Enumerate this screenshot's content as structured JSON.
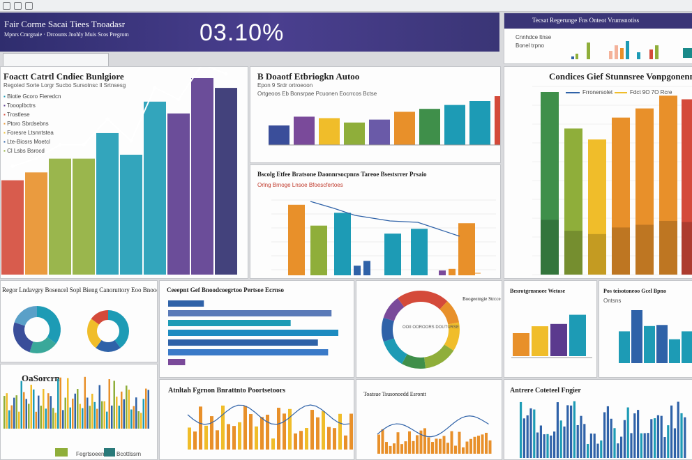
{
  "window": {
    "title_bar": ""
  },
  "banner": {
    "title": "Fair Corme Sacai Tiees Tnoadasr",
    "subtitle": "Mpnrs Cmrgnaie · Drcounts Jnohly Muis Scos Pregrom",
    "big_value": "03.10%"
  },
  "top_right": {
    "title": "Tecsat Regerunge Fns Onteot Vrumsnotiss",
    "items": [
      "Cnnhdce ltnse",
      "Bonel trpno"
    ]
  },
  "colors": {
    "purple": "#5b3a8e",
    "teal": "#1d9bb5",
    "olive": "#8fae3a",
    "orange": "#e8902a",
    "red": "#d44a3a",
    "blue": "#2f62a8",
    "yellow": "#f0bd2a",
    "green": "#3f8f4a"
  },
  "panels": {
    "p1": {
      "title": "Foactt Catrtl Cndiec Bunlgiore",
      "subtitle": "Regoted Sorte Lorgr Sucbo Sursotnsc Il Srtnsesg",
      "legend": [
        "Biotie Gcoro Fieredcn",
        "Toooplbctrs",
        "Trostlese",
        "Ptoro Sbrdsebns",
        "Foresre Ltsnntstea",
        "Lte-Biosrs Moetcl",
        "Cl Lsbs Bsrocd"
      ]
    },
    "p2": {
      "title": "B Doaotf Etbriogkn Autoo",
      "subtitle": "Epon 9 Srdr ortroeoon",
      "legend": "Ortgeoos Eb Bonsrpae Pcuonen Eocrrcos Bctse"
    },
    "p3": {
      "title": "Bscolg Etfee Bratsone Daonnrsocpnns Tareoe Bsestsrrer Prsaio",
      "subtitle": "Orlng Brnoge Lnsoe Bfoescfertoes"
    },
    "p4": {
      "title": "Condices Gief Stunnsree Vonpgonennone",
      "legend": [
        "Frronersolet",
        "Fdct 9O 7O Rcre"
      ]
    },
    "p5": {
      "title": "Regor Lndavgry Bosencel Sopl Bieng Canoruttory Eoo Bnooe"
    },
    "p6": {
      "title": "Ceeepnt Gef Bnoodcoegrtoo Pertsoe Ecrnso"
    },
    "p7": {
      "title": "Boogeemgie Strcce",
      "center": "OOII OOROORS DOUTURSE"
    },
    "p8": {
      "title": "Besrotgrnsnoee Wetose"
    },
    "p9": {
      "title": "Pos teisotoneoo Gcel Bpno",
      "subtitle": "Ontsns"
    },
    "p10": {
      "title": "OaSorcrn",
      "legend": [
        "Fegrtsoeenss",
        "Bcottlssrn"
      ]
    },
    "p11": {
      "title": "Atnltah Fgrnon Bnrattnto Poortsetoors"
    },
    "p12": {
      "title": "Toatsue Tsusonoedd Esrontt"
    },
    "p13": {
      "title": "Antrere Coteteel Fngier"
    }
  },
  "chart_data": [
    {
      "type": "bar",
      "title": "Foactt Catrtl Cndiec Bunlgiore",
      "values": [
        48,
        52,
        59,
        59,
        72,
        61,
        88,
        82,
        100,
        95
      ]
    },
    {
      "type": "bar",
      "title": "B Doaotf Etbriogkn Autoo",
      "values": [
        40,
        58,
        55,
        46,
        52,
        68,
        74,
        82,
        90,
        100
      ]
    },
    {
      "type": "bar",
      "title": "Bscolg Etfee Bratsone Daonnrsocpnns",
      "values": [
        88,
        62,
        78,
        12,
        18,
        52,
        58,
        6,
        8,
        65
      ]
    },
    {
      "type": "bar",
      "title": "Condices Gief Stunnsree",
      "values": [
        100,
        80,
        74,
        86,
        91,
        98,
        96
      ]
    },
    {
      "type": "pie",
      "values": [
        35,
        20,
        25,
        20
      ]
    },
    {
      "type": "pie",
      "values": [
        40,
        20,
        25,
        15
      ]
    },
    {
      "type": "bar",
      "title": "Ceeepnt Gef Bnoodcoegrtoo",
      "values": [
        21,
        96,
        72,
        100,
        88,
        94,
        10
      ]
    },
    {
      "type": "pie",
      "values": [
        12,
        10,
        12,
        14,
        10,
        12,
        10,
        10,
        10
      ]
    },
    {
      "type": "bar",
      "values": [
        50,
        65,
        70,
        90
      ]
    },
    {
      "type": "bar",
      "values": [
        60,
        100,
        70,
        72,
        45,
        60
      ]
    }
  ]
}
